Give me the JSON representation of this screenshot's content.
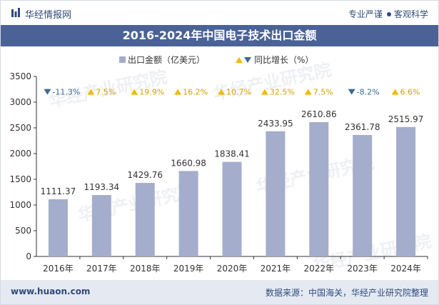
{
  "header": {
    "brand": "华经情报网",
    "tagline_left": "专业严谨",
    "tagline_right": "客观科学"
  },
  "footer": {
    "website": "www.huaon.com",
    "source": "数据来源：中国海关，华经产业研究院整理"
  },
  "watermark": "华经产业研究院",
  "colors": {
    "bar": "#a4adcb",
    "up": "#f5b800",
    "down": "#3d6a8f",
    "title_band": "#4a6296"
  },
  "chart_data": {
    "type": "bar",
    "title": "2016-2024年中国电子技术出口金额",
    "categories": [
      "2016年",
      "2017年",
      "2018年",
      "2019年",
      "2020年",
      "2021年",
      "2022年",
      "2023年",
      "2024年"
    ],
    "series": [
      {
        "name": "出口金额（亿美元）",
        "values": [
          1111.37,
          1193.34,
          1429.76,
          1660.98,
          1838.41,
          2433.95,
          2610.86,
          2361.78,
          2515.97
        ],
        "labels": [
          "1111.37",
          "1193.34",
          "1429.76",
          "1660.98",
          "1838.41",
          "2433.95",
          "2610.86",
          "2361.78",
          "2515.97"
        ]
      },
      {
        "name": "同比增长（%）",
        "values": [
          -11.3,
          7.5,
          19.9,
          16.2,
          10.7,
          32.5,
          7.5,
          -8.2,
          6.6
        ],
        "labels": [
          "-11.3%",
          "7.5%",
          "19.9%",
          "16.2%",
          "10.7%",
          "32.5%",
          "7.5%",
          "-8.2%",
          "6.6%"
        ]
      }
    ],
    "yticks": [
      "0",
      "500",
      "1000",
      "1500",
      "2000",
      "2500",
      "3000",
      "3500"
    ],
    "ylim": [
      0,
      3500
    ],
    "legend_position": "top-center",
    "grid": false
  }
}
